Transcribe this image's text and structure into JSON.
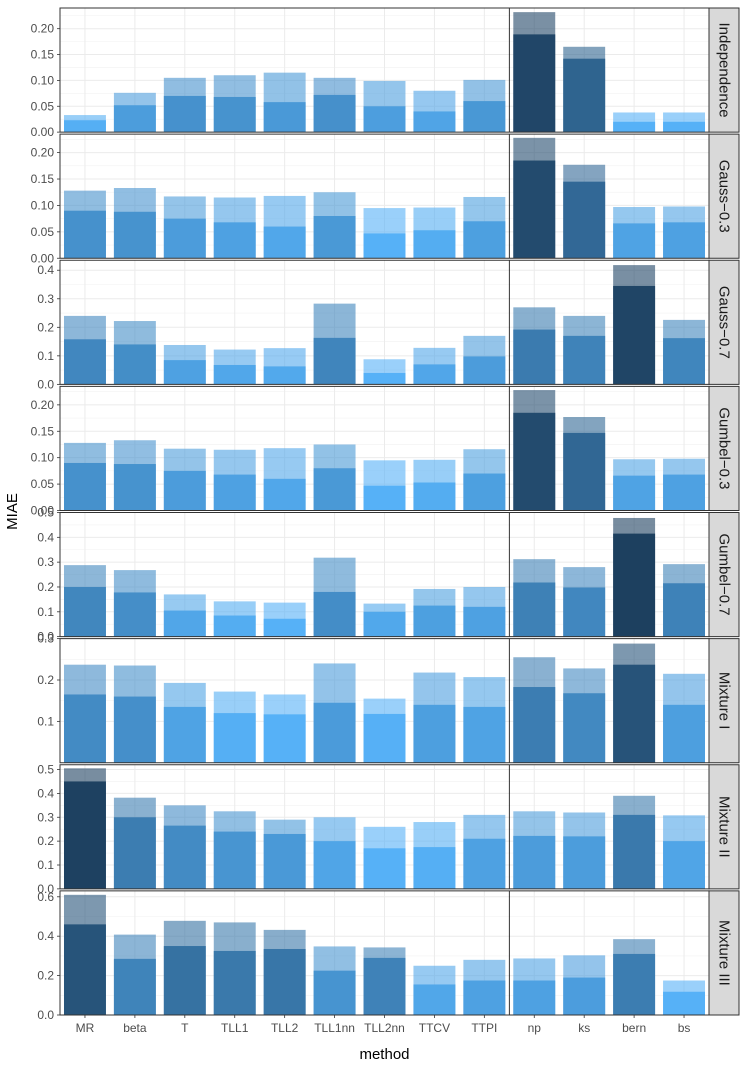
{
  "chart_data": {
    "type": "bar",
    "subtype": "faceted-overlaid-bar",
    "xlabel": "method",
    "ylabel": "MIAE",
    "categories": [
      "MR",
      "beta",
      "T",
      "TLL1",
      "TLL2",
      "TLL1nn",
      "TLL2nn",
      "TTCV",
      "TTPI",
      "np",
      "ks",
      "bern",
      "bs"
    ],
    "group_separator_after": "TTPI",
    "colors": {
      "dark": "#132b43",
      "light": "#56b1f7",
      "overlay": "#ffffff",
      "panel_border": "#333333",
      "grid": "#ebebeb",
      "strip_fill": "#d9d9d9"
    },
    "panels": [
      {
        "label": "Independence",
        "ylim": [
          0,
          0.24
        ],
        "yticks": [
          0.0,
          0.05,
          0.1,
          0.15,
          0.2
        ],
        "tick_labels": [
          "0.00",
          "0.05",
          "0.10",
          "0.15",
          "0.20"
        ],
        "lower": [
          0.023,
          0.052,
          0.07,
          0.068,
          0.058,
          0.072,
          0.05,
          0.04,
          0.06,
          0.189,
          0.142,
          0.02,
          0.02
        ],
        "upper": [
          0.033,
          0.076,
          0.105,
          0.11,
          0.115,
          0.105,
          0.099,
          0.08,
          0.101,
          0.232,
          0.165,
          0.038,
          0.038
        ]
      },
      {
        "label": "Gauss−0.3",
        "ylim": [
          0,
          0.235
        ],
        "yticks": [
          0.0,
          0.05,
          0.1,
          0.15,
          0.2
        ],
        "tick_labels": [
          "0.00",
          "0.05",
          "0.10",
          "0.15",
          "0.20"
        ],
        "lower": [
          0.09,
          0.088,
          0.075,
          0.068,
          0.06,
          0.08,
          0.047,
          0.053,
          0.07,
          0.185,
          0.145,
          0.066,
          0.068
        ],
        "upper": [
          0.128,
          0.133,
          0.117,
          0.115,
          0.118,
          0.125,
          0.095,
          0.096,
          0.116,
          0.228,
          0.177,
          0.097,
          0.098
        ]
      },
      {
        "label": "Gauss−0.7",
        "ylim": [
          0,
          0.435
        ],
        "yticks": [
          0.0,
          0.1,
          0.2,
          0.3,
          0.4
        ],
        "tick_labels": [
          "0.0",
          "0.1",
          "0.2",
          "0.3",
          "0.4"
        ],
        "lower": [
          0.158,
          0.14,
          0.085,
          0.068,
          0.063,
          0.163,
          0.04,
          0.07,
          0.098,
          0.192,
          0.17,
          0.345,
          0.162
        ],
        "upper": [
          0.24,
          0.222,
          0.138,
          0.122,
          0.127,
          0.283,
          0.088,
          0.128,
          0.17,
          0.27,
          0.24,
          0.418,
          0.226
        ]
      },
      {
        "label": "Gumbel−0.3",
        "ylim": [
          0,
          0.235
        ],
        "yticks": [
          0.0,
          0.05,
          0.1,
          0.15,
          0.2
        ],
        "tick_labels": [
          "0.00",
          "0.05",
          "0.10",
          "0.15",
          "0.20"
        ],
        "lower": [
          0.09,
          0.088,
          0.075,
          0.068,
          0.06,
          0.08,
          0.047,
          0.053,
          0.07,
          0.185,
          0.147,
          0.066,
          0.068
        ],
        "upper": [
          0.128,
          0.133,
          0.117,
          0.115,
          0.118,
          0.125,
          0.095,
          0.096,
          0.116,
          0.228,
          0.177,
          0.097,
          0.098
        ]
      },
      {
        "label": "Gumbel−0.7",
        "ylim": [
          0,
          0.5
        ],
        "yticks": [
          0.0,
          0.1,
          0.2,
          0.3,
          0.4,
          0.5
        ],
        "tick_labels": [
          "0.0",
          "0.1",
          "0.2",
          "0.3",
          "0.4",
          "0.5"
        ],
        "lower": [
          0.2,
          0.178,
          0.105,
          0.085,
          0.072,
          0.18,
          0.1,
          0.125,
          0.12,
          0.218,
          0.198,
          0.415,
          0.215
        ],
        "upper": [
          0.288,
          0.268,
          0.17,
          0.142,
          0.137,
          0.318,
          0.133,
          0.192,
          0.2,
          0.312,
          0.28,
          0.478,
          0.292
        ]
      },
      {
        "label": "Mixture I",
        "ylim": [
          0,
          0.3
        ],
        "yticks": [
          0.1,
          0.2,
          0.3
        ],
        "tick_labels": [
          "0.1",
          "0.2",
          "0.3"
        ],
        "lower": [
          0.165,
          0.16,
          0.135,
          0.12,
          0.117,
          0.145,
          0.118,
          0.14,
          0.135,
          0.183,
          0.168,
          0.237,
          0.14
        ],
        "upper": [
          0.237,
          0.235,
          0.193,
          0.172,
          0.165,
          0.24,
          0.155,
          0.218,
          0.207,
          0.255,
          0.228,
          0.288,
          0.215
        ]
      },
      {
        "label": "Mixture II",
        "ylim": [
          0,
          0.52
        ],
        "yticks": [
          0.0,
          0.1,
          0.2,
          0.3,
          0.4,
          0.5
        ],
        "tick_labels": [
          "0.0",
          "0.1",
          "0.2",
          "0.3",
          "0.4",
          "0.5"
        ],
        "lower": [
          0.45,
          0.3,
          0.265,
          0.24,
          0.23,
          0.2,
          0.17,
          0.175,
          0.21,
          0.222,
          0.22,
          0.31,
          0.2
        ],
        "upper": [
          0.505,
          0.382,
          0.35,
          0.325,
          0.29,
          0.3,
          0.26,
          0.28,
          0.31,
          0.325,
          0.32,
          0.39,
          0.308
        ]
      },
      {
        "label": "Mixture III",
        "ylim": [
          0,
          0.63
        ],
        "yticks": [
          0.0,
          0.2,
          0.4,
          0.6
        ],
        "tick_labels": [
          "0.0",
          "0.2",
          "0.4",
          "0.6"
        ],
        "lower": [
          0.46,
          0.285,
          0.35,
          0.325,
          0.335,
          0.225,
          0.29,
          0.155,
          0.175,
          0.175,
          0.19,
          0.31,
          0.118
        ],
        "upper": [
          0.61,
          0.408,
          0.478,
          0.47,
          0.432,
          0.348,
          0.343,
          0.25,
          0.28,
          0.287,
          0.303,
          0.385,
          0.175
        ]
      }
    ]
  }
}
